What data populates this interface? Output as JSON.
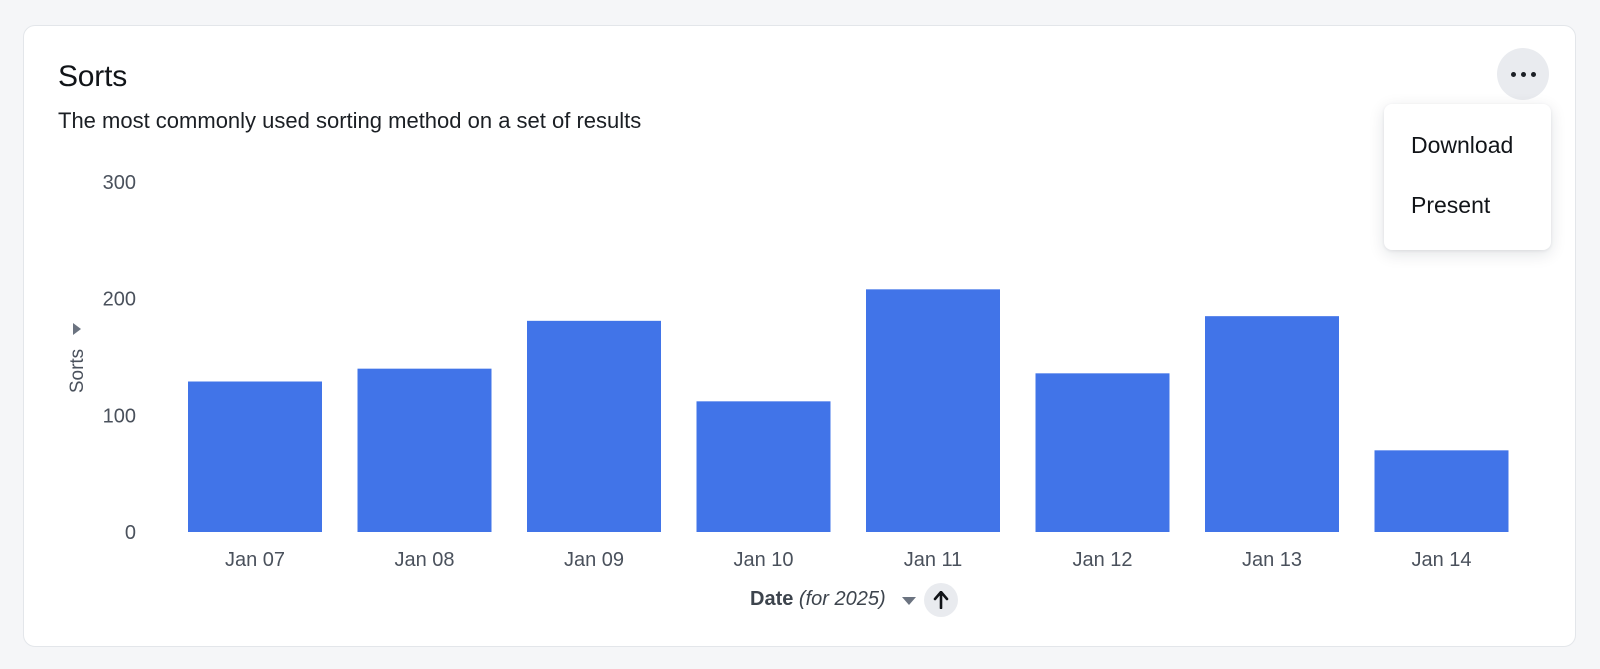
{
  "card": {
    "title": "Sorts",
    "subtitle": "The most commonly used sorting method on a set of results"
  },
  "menu": {
    "items": [
      "Download",
      "Present"
    ]
  },
  "x_axis": {
    "label_strong": "Date",
    "label_italic": "(for 2025)"
  },
  "colors": {
    "bar": "#4174e8",
    "text": "#111418",
    "axis_text": "#4a515c"
  },
  "chart_data": {
    "type": "bar",
    "categories": [
      "Jan 07",
      "Jan 08",
      "Jan 09",
      "Jan 10",
      "Jan 11",
      "Jan 12",
      "Jan 13",
      "Jan 14"
    ],
    "series": [
      {
        "values": [
          129,
          140,
          181,
          112,
          208,
          136,
          185,
          70
        ]
      }
    ],
    "ylabel": "Sorts",
    "ylim": [
      0,
      300
    ],
    "yticks": [
      0,
      100,
      200,
      300
    ],
    "grid": false,
    "legend": "none"
  }
}
